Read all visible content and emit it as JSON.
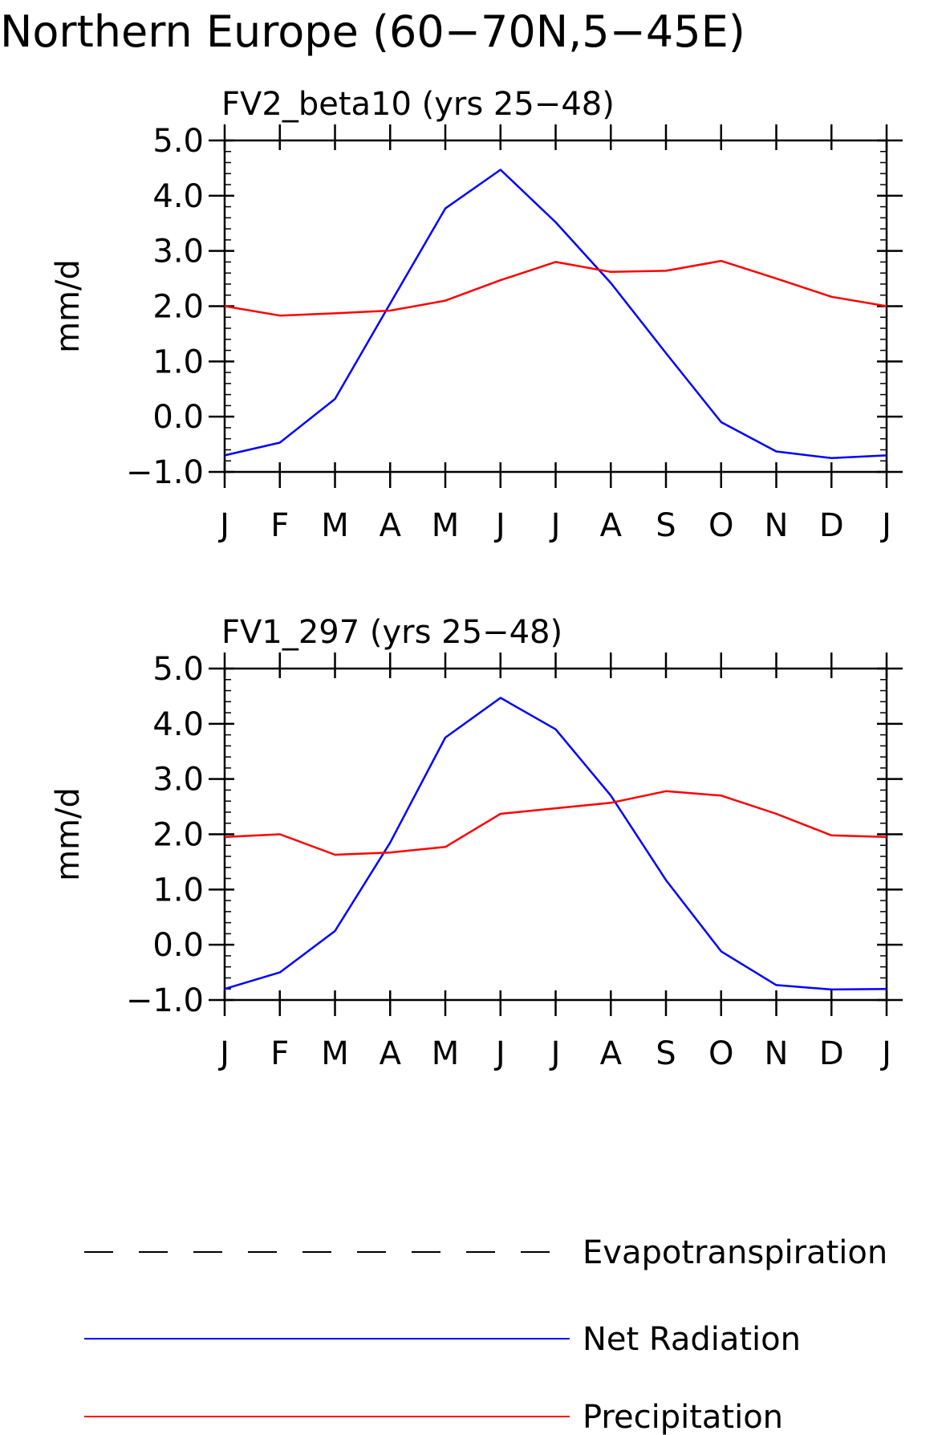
{
  "page_title": "Northern Europe (60−70N,5−45E)",
  "colors": {
    "net_radiation": "#0000ff",
    "precipitation": "#ff0000",
    "evapotranspiration": "#000000",
    "axis": "#000000"
  },
  "legend": {
    "placement": "bottom",
    "items": [
      {
        "label": "Evapotranspiration",
        "style": "dashed",
        "color": "#000000"
      },
      {
        "label": "Net Radiation",
        "style": "solid",
        "color": "#0000ff"
      },
      {
        "label": "Precipitation",
        "style": "solid",
        "color": "#ff0000"
      }
    ]
  },
  "chart_data": [
    {
      "type": "line",
      "title": "FV2_beta10 (yrs 25−48)",
      "ylabel": "mm/d",
      "xlabel": "",
      "categories": [
        "J",
        "F",
        "M",
        "A",
        "M",
        "J",
        "J",
        "A",
        "S",
        "O",
        "N",
        "D",
        "J"
      ],
      "ylim": [
        -1.0,
        5.0
      ],
      "yticks": [
        "5.0",
        "4.0",
        "3.0",
        "2.0",
        "1.0",
        "0.0",
        "−1.0"
      ],
      "grid": false,
      "series": [
        {
          "name": "Net Radiation",
          "color": "#0000ff",
          "values": [
            -0.7,
            -0.47,
            0.32,
            2.05,
            3.77,
            4.47,
            3.52,
            2.42,
            1.15,
            -0.1,
            -0.63,
            -0.75,
            -0.7
          ]
        },
        {
          "name": "Precipitation",
          "color": "#ff0000",
          "values": [
            2.0,
            1.83,
            1.87,
            1.92,
            2.1,
            2.47,
            2.8,
            2.62,
            2.64,
            2.82,
            2.5,
            2.17,
            2.0
          ]
        }
      ]
    },
    {
      "type": "line",
      "title": "FV1_297 (yrs 25−48)",
      "ylabel": "mm/d",
      "xlabel": "",
      "categories": [
        "J",
        "F",
        "M",
        "A",
        "M",
        "J",
        "J",
        "A",
        "S",
        "O",
        "N",
        "D",
        "J"
      ],
      "ylim": [
        -1.0,
        5.0
      ],
      "yticks": [
        "5.0",
        "4.0",
        "3.0",
        "2.0",
        "1.0",
        "0.0",
        "−1.0"
      ],
      "grid": false,
      "series": [
        {
          "name": "Net Radiation",
          "color": "#0000ff",
          "values": [
            -0.8,
            -0.5,
            0.25,
            1.85,
            3.75,
            4.47,
            3.9,
            2.7,
            1.17,
            -0.12,
            -0.73,
            -0.81,
            -0.8
          ]
        },
        {
          "name": "Precipitation",
          "color": "#ff0000",
          "values": [
            1.95,
            2.0,
            1.63,
            1.67,
            1.77,
            2.37,
            2.47,
            2.57,
            2.78,
            2.7,
            2.37,
            1.98,
            1.95
          ]
        }
      ]
    }
  ]
}
